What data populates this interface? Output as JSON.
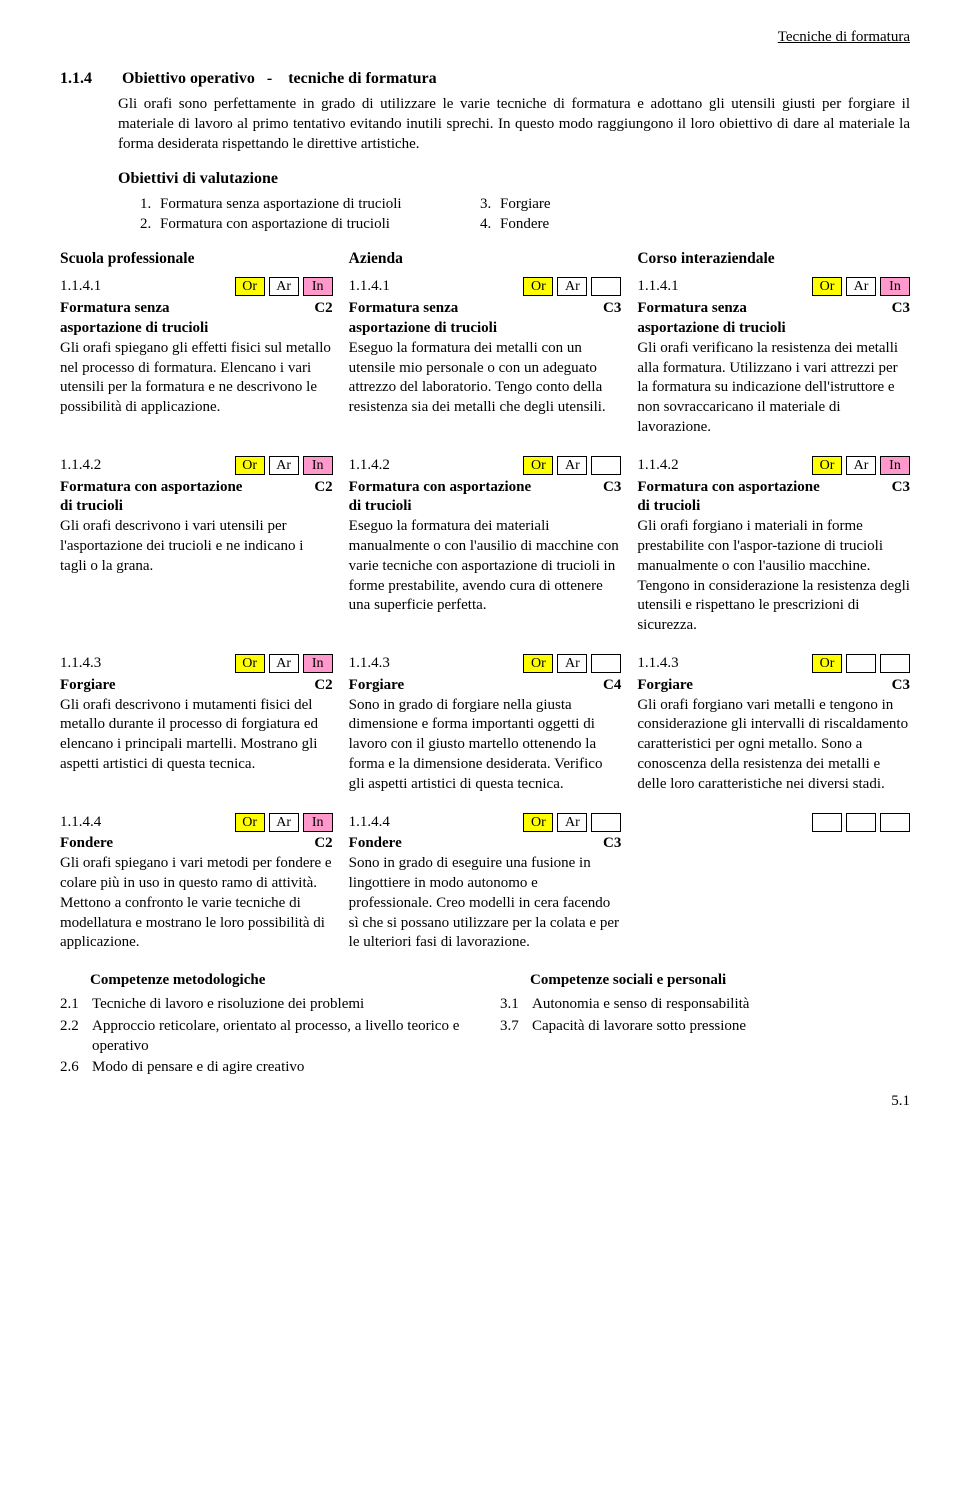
{
  "header_category": "Tecniche di formatura",
  "section_number": "1.1.4",
  "section_title_prefix": "Obiettivo operativo",
  "section_title_sep": "-",
  "section_title_suffix": "tecniche di formatura",
  "intro": "Gli orafi sono perfettamente in grado di utilizzare le varie tecniche di formatura e adottano gli utensili giusti per forgiare il materiale di lavoro al primo tentativo evitando inutili sprechi. In questo modo raggiungono il loro obiettivo di dare al materiale la forma desiderata  rispettando le direttive artistiche.",
  "eval_title": "Obiettivi di valutazione",
  "objectives": {
    "n1": "1.",
    "t1": "Formatura senza asportazione di trucioli",
    "n2": "2.",
    "t2": "Formatura con asportazione di trucioli",
    "n3": "3.",
    "t3": "Forgiare",
    "n4": "4.",
    "t4": "Fondere"
  },
  "col_headers": {
    "a": "Scuola professionale",
    "b": "Azienda",
    "c": "Corso interaziendale"
  },
  "tags": {
    "or": "Or",
    "ar": "Ar",
    "in": "In"
  },
  "rows": [
    {
      "a": {
        "num": "1.1.4.1",
        "tags": [
          "or",
          "ar",
          "in"
        ],
        "title": "Formatura senza",
        "sub": "asportazione di trucioli",
        "level": "C2",
        "desc": "Gli orafi spiegano gli effetti fisici sul metallo nel processo di formatura. Elencano i vari utensili per la formatura e ne descrivono le possibilità di applicazione."
      },
      "b": {
        "num": "1.1.4.1",
        "tags": [
          "or",
          "ar",
          "blank"
        ],
        "title": "Formatura senza",
        "sub": "asportazione di trucioli",
        "level": "C3",
        "desc": "Eseguo la formatura dei metalli con un utensile mio personale o con un adeguato attrezzo del laboratorio. Tengo conto della resistenza sia dei metalli che degli utensili."
      },
      "c": {
        "num": "1.1.4.1",
        "tags": [
          "or",
          "ar",
          "in"
        ],
        "title": "Formatura senza",
        "sub": "asportazione di trucioli",
        "level": "C3",
        "desc": "Gli orafi verificano la resistenza dei metalli alla formatura. Utilizzano i vari attrezzi per la formatura su indicazione dell'istruttore e non sovraccaricano il materiale di lavorazione."
      }
    },
    {
      "a": {
        "num": "1.1.4.2",
        "tags": [
          "or",
          "ar",
          "in"
        ],
        "title": "Formatura con asportazione",
        "sub": "di trucioli",
        "level": "C2",
        "desc": "Gli orafi descrivono i vari utensili per l'asportazione dei trucioli e ne indicano i tagli o la grana."
      },
      "b": {
        "num": "1.1.4.2",
        "tags": [
          "or",
          "ar",
          "blank"
        ],
        "title": "Formatura con asportazione",
        "sub": "di trucioli",
        "level": "C3",
        "desc": "Eseguo la formatura dei materiali manualmente o con l'ausilio di macchine con varie tecniche con asportazione di trucioli in forme prestabilite, avendo cura di ottenere una superficie perfetta."
      },
      "c": {
        "num": "1.1.4.2",
        "tags": [
          "or",
          "ar",
          "in"
        ],
        "title": "Formatura con asportazione",
        "sub": "di trucioli",
        "level": "C3",
        "desc": "Gli orafi forgiano i materiali in forme prestabilite con l'aspor-tazione di trucioli manualmente o con l'ausilio macchine. Tengono in considerazione la resistenza degli utensili e rispettano le prescrizioni di sicurezza."
      }
    },
    {
      "a": {
        "num": "1.1.4.3",
        "tags": [
          "or",
          "ar",
          "in"
        ],
        "title": "Forgiare",
        "sub": "",
        "level": "C2",
        "desc": "Gli orafi descrivono i mutamenti fisici del metallo durante il processo di forgiatura ed elencano i principali martelli. Mostrano gli aspetti artistici di questa tecnica."
      },
      "b": {
        "num": "1.1.4.3",
        "tags": [
          "or",
          "ar",
          "blank"
        ],
        "title": "Forgiare",
        "sub": "",
        "level": "C4",
        "desc": "Sono in grado di forgiare nella giusta dimensione e forma importanti oggetti di lavoro con il giusto martello ottenendo la forma e la dimensione desiderata. Verifico gli aspetti artistici di questa tecnica."
      },
      "c": {
        "num": "1.1.4.3",
        "tags": [
          "or",
          "blank",
          "blank"
        ],
        "title": "Forgiare",
        "sub": "",
        "level": "C3",
        "desc": "Gli orafi forgiano vari metalli e tengono in considerazione gli intervalli di riscaldamento caratteristici per ogni metallo. Sono a conoscenza della resistenza dei metalli e delle loro caratteristiche nei diversi stadi."
      }
    },
    {
      "a": {
        "num": "1.1.4.4",
        "tags": [
          "or",
          "ar",
          "in"
        ],
        "title": "Fondere",
        "sub": "",
        "level": "C2",
        "desc": "Gli orafi spiegano i vari metodi per fondere e colare più in uso in questo ramo di attività. Mettono a confronto le varie tecniche di modellatura e mostrano le loro possibilità di applicazione."
      },
      "b": {
        "num": "1.1.4.4",
        "tags": [
          "or",
          "ar",
          "blank"
        ],
        "title": "Fondere",
        "sub": "",
        "level": "C3",
        "desc": "Sono in grado di eseguire una fusione in lingottiere in modo autonomo e professionale. Creo modelli in cera facendo sì che si possano utilizzare per la colata e per le ulteriori fasi di lavorazione."
      },
      "c": {
        "num": "",
        "tags": [
          "blank",
          "blank",
          "blank"
        ],
        "title": "",
        "sub": "",
        "level": "",
        "desc": ""
      }
    }
  ],
  "comp_left_title": "Competenze metodologiche",
  "comp_left": [
    {
      "n": "2.1",
      "t": "Tecniche di lavoro e risoluzione dei problemi"
    },
    {
      "n": "2.2",
      "t": "Approccio reticolare, orientato al processo, a livello teorico e operativo"
    },
    {
      "n": "2.6",
      "t": "Modo di pensare e di agire creativo"
    }
  ],
  "comp_right_title": "Competenze sociali e personali",
  "comp_right": [
    {
      "n": "3.1",
      "t": "Autonomia e senso di responsabilità"
    },
    {
      "n": "3.7",
      "t": "Capacità di lavorare sotto pressione"
    }
  ],
  "footer": "5.1"
}
